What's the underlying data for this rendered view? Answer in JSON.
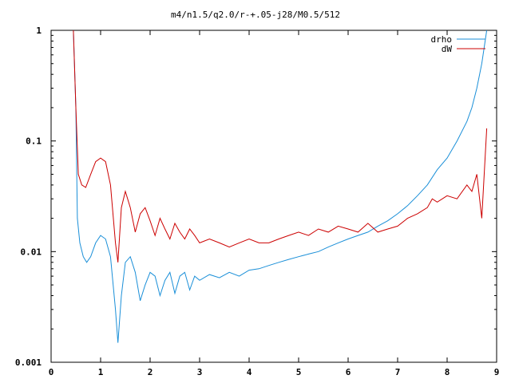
{
  "chart_data": {
    "type": "line",
    "title": "m4/n1.5/q2.0/r-+.05-j28/M0.5/512",
    "xlabel": "",
    "ylabel": "",
    "xlim": [
      0,
      9
    ],
    "ylim": [
      0.001,
      1
    ],
    "yscale": "log",
    "grid": false,
    "legend_position": "top-right",
    "x_ticks": [
      "0",
      "1",
      "2",
      "3",
      "4",
      "5",
      "6",
      "7",
      "8",
      "9"
    ],
    "y_ticks": [
      "0.001",
      "0.01",
      "0.1",
      "1"
    ],
    "series": [
      {
        "name": "drho",
        "color": "#1a8fd8",
        "x": [
          0.45,
          0.5,
          0.53,
          0.58,
          0.65,
          0.72,
          0.8,
          0.9,
          1.0,
          1.1,
          1.2,
          1.3,
          1.35,
          1.42,
          1.5,
          1.6,
          1.7,
          1.8,
          1.9,
          2.0,
          2.1,
          2.2,
          2.3,
          2.4,
          2.5,
          2.6,
          2.7,
          2.8,
          2.9,
          3.0,
          3.2,
          3.4,
          3.6,
          3.8,
          4.0,
          4.2,
          4.4,
          4.6,
          4.8,
          5.0,
          5.2,
          5.4,
          5.6,
          5.8,
          6.0,
          6.2,
          6.4,
          6.6,
          6.8,
          7.0,
          7.2,
          7.4,
          7.6,
          7.8,
          8.0,
          8.2,
          8.4,
          8.5,
          8.6,
          8.7,
          8.8
        ],
        "y": [
          1.0,
          0.2,
          0.02,
          0.012,
          0.009,
          0.008,
          0.009,
          0.012,
          0.014,
          0.013,
          0.009,
          0.003,
          0.0015,
          0.004,
          0.008,
          0.009,
          0.0065,
          0.0036,
          0.005,
          0.0065,
          0.006,
          0.004,
          0.0055,
          0.0065,
          0.0042,
          0.006,
          0.0065,
          0.0045,
          0.006,
          0.0055,
          0.0062,
          0.0058,
          0.0065,
          0.006,
          0.0068,
          0.007,
          0.0075,
          0.008,
          0.0085,
          0.009,
          0.0095,
          0.01,
          0.011,
          0.012,
          0.013,
          0.014,
          0.015,
          0.017,
          0.019,
          0.022,
          0.026,
          0.032,
          0.04,
          0.055,
          0.07,
          0.1,
          0.15,
          0.2,
          0.3,
          0.5,
          1.0
        ]
      },
      {
        "name": "dW",
        "color": "#cc0000",
        "x": [
          0.45,
          0.5,
          0.55,
          0.62,
          0.7,
          0.8,
          0.9,
          1.0,
          1.1,
          1.2,
          1.3,
          1.35,
          1.42,
          1.5,
          1.6,
          1.7,
          1.8,
          1.9,
          2.0,
          2.1,
          2.2,
          2.3,
          2.4,
          2.5,
          2.6,
          2.7,
          2.8,
          2.9,
          3.0,
          3.2,
          3.4,
          3.6,
          3.8,
          4.0,
          4.2,
          4.4,
          4.6,
          4.8,
          5.0,
          5.2,
          5.4,
          5.6,
          5.8,
          6.0,
          6.2,
          6.4,
          6.6,
          6.8,
          7.0,
          7.2,
          7.4,
          7.6,
          7.7,
          7.8,
          8.0,
          8.2,
          8.4,
          8.5,
          8.6,
          8.7,
          8.8
        ],
        "y": [
          1.0,
          0.2,
          0.05,
          0.04,
          0.038,
          0.05,
          0.065,
          0.07,
          0.065,
          0.04,
          0.012,
          0.008,
          0.025,
          0.035,
          0.025,
          0.015,
          0.022,
          0.025,
          0.019,
          0.014,
          0.02,
          0.016,
          0.013,
          0.018,
          0.015,
          0.013,
          0.016,
          0.014,
          0.012,
          0.013,
          0.012,
          0.011,
          0.012,
          0.013,
          0.012,
          0.012,
          0.013,
          0.014,
          0.015,
          0.014,
          0.016,
          0.015,
          0.017,
          0.016,
          0.015,
          0.018,
          0.015,
          0.016,
          0.017,
          0.02,
          0.022,
          0.025,
          0.03,
          0.028,
          0.032,
          0.03,
          0.04,
          0.035,
          0.05,
          0.02,
          0.13
        ]
      }
    ]
  }
}
